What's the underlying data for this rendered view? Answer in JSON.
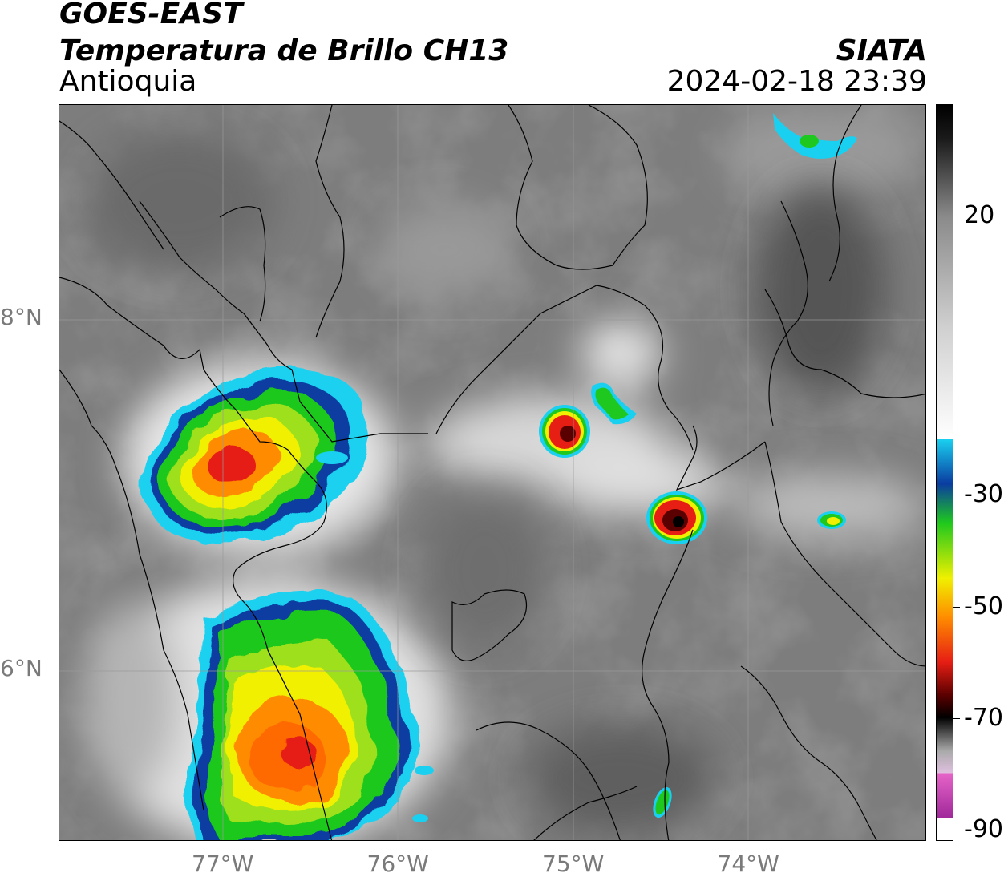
{
  "header": {
    "title_line1": "GOES-EAST",
    "title_line2": "Temperatura de Brillo CH13",
    "region": "Antioquia",
    "agency": "SIATA",
    "timestamp": "2024-02-18 23:39"
  },
  "map": {
    "lat_labels": [
      {
        "label": "8°N",
        "value": 8
      },
      {
        "label": "6°N",
        "value": 6
      }
    ],
    "lon_labels": [
      {
        "label": "77°W",
        "value": -77
      },
      {
        "label": "76°W",
        "value": -76
      },
      {
        "label": "75°W",
        "value": -75
      },
      {
        "label": "74°W",
        "value": -74
      }
    ]
  },
  "colorbar": {
    "ticks": [
      {
        "label": "20",
        "value": 20
      },
      {
        "label": "-30",
        "value": -30
      },
      {
        "label": "-50",
        "value": -50
      },
      {
        "label": "-70",
        "value": -70
      },
      {
        "label": "-90",
        "value": -90
      }
    ],
    "colors": {
      "warm_dark": "#1a1a1a",
      "gray_mid": "#8a8a8a",
      "white": "#ffffff",
      "cyan": "#1ad0f0",
      "blue": "#0a3ca0",
      "green": "#1ec81e",
      "yellow": "#f0f000",
      "orange": "#ff8c00",
      "red": "#e61e14",
      "dark_red": "#5a0000",
      "black": "#000000",
      "pink": "#e664c8",
      "magenta": "#a0289a"
    }
  }
}
